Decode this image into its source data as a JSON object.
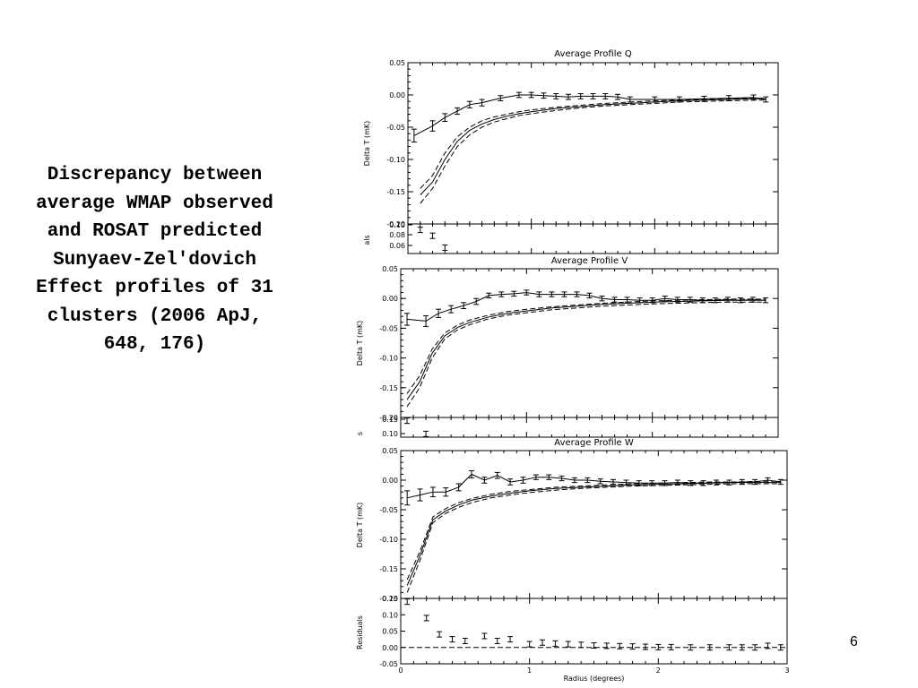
{
  "slide": {
    "caption": "Discrepancy between average WMAP observed and ROSAT predicted Sunyaev-Zel'dovich Effect profiles of 31 clusters (2006 ApJ, 648, 176)",
    "page_number": "6"
  },
  "chart_data": [
    {
      "type": "line",
      "title": "Average Profile Q",
      "ylabel": "Delta T (mK)",
      "xlabel": "",
      "xlim": [
        0,
        3
      ],
      "ylim": [
        -0.2,
        0.05
      ],
      "yticks": [
        "0.05",
        "0.00",
        "-0.05",
        "-0.10",
        "-0.15",
        "-0.20"
      ],
      "series": [
        {
          "style": "solid-errorbars",
          "x": [
            0.05,
            0.2,
            0.3,
            0.4,
            0.5,
            0.6,
            0.75,
            0.9,
            1.0,
            1.1,
            1.2,
            1.3,
            1.4,
            1.5,
            1.6,
            1.7,
            1.8,
            2.0,
            2.2,
            2.4,
            2.6,
            2.8,
            2.9
          ],
          "y": [
            -0.063,
            -0.048,
            -0.035,
            -0.025,
            -0.015,
            -0.012,
            -0.005,
            0.0,
            0.0,
            -0.001,
            -0.002,
            -0.003,
            -0.002,
            -0.002,
            -0.002,
            -0.003,
            -0.007,
            -0.007,
            -0.007,
            -0.006,
            -0.005,
            -0.004,
            -0.007
          ],
          "err": [
            0.01,
            0.008,
            0.006,
            0.005,
            0.005,
            0.005,
            0.004,
            0.004,
            0.004,
            0.004,
            0.004,
            0.004,
            0.004,
            0.004,
            0.004,
            0.004,
            0.004,
            0.004,
            0.004,
            0.004,
            0.004,
            0.004,
            0.004
          ]
        },
        {
          "style": "dashed",
          "x": [
            0.1,
            0.2,
            0.3,
            0.4,
            0.5,
            0.6,
            0.7,
            0.8,
            0.9,
            1.0,
            1.2,
            1.4,
            1.6,
            1.8,
            2.0,
            2.2,
            2.4,
            2.6,
            2.8,
            2.9
          ],
          "y": [
            -0.145,
            -0.125,
            -0.09,
            -0.065,
            -0.05,
            -0.04,
            -0.034,
            -0.03,
            -0.026,
            -0.023,
            -0.019,
            -0.016,
            -0.013,
            -0.011,
            -0.009,
            -0.008,
            -0.007,
            -0.006,
            -0.005,
            -0.005
          ]
        },
        {
          "style": "solid",
          "x": [
            0.1,
            0.2,
            0.3,
            0.4,
            0.5,
            0.6,
            0.7,
            0.8,
            0.9,
            1.0,
            1.2,
            1.4,
            1.6,
            1.8,
            2.0,
            2.2,
            2.4,
            2.6,
            2.8,
            2.9
          ],
          "y": [
            -0.155,
            -0.135,
            -0.1,
            -0.072,
            -0.055,
            -0.045,
            -0.038,
            -0.033,
            -0.029,
            -0.026,
            -0.021,
            -0.018,
            -0.015,
            -0.013,
            -0.011,
            -0.009,
            -0.008,
            -0.007,
            -0.006,
            -0.006
          ]
        },
        {
          "style": "dashed",
          "x": [
            0.1,
            0.2,
            0.3,
            0.4,
            0.5,
            0.6,
            0.7,
            0.8,
            0.9,
            1.0,
            1.2,
            1.4,
            1.6,
            1.8,
            2.0,
            2.2,
            2.4,
            2.6,
            2.8,
            2.9
          ],
          "y": [
            -0.168,
            -0.145,
            -0.11,
            -0.08,
            -0.062,
            -0.05,
            -0.042,
            -0.037,
            -0.032,
            -0.029,
            -0.024,
            -0.02,
            -0.017,
            -0.015,
            -0.013,
            -0.011,
            -0.01,
            -0.009,
            -0.008,
            -0.008
          ]
        }
      ],
      "residuals": {
        "ylabel": "als",
        "ylim": [
          0.05,
          0.1
        ],
        "yticks": [
          "0.10",
          "0.08",
          "0.06"
        ],
        "x": [
          0.1,
          0.2,
          0.3
        ],
        "y": [
          0.09,
          0.08,
          0.06
        ]
      }
    },
    {
      "type": "line",
      "title": "Average Profile V",
      "ylabel": "Delta T (mK)",
      "xlabel": "",
      "xlim": [
        0,
        3
      ],
      "ylim": [
        -0.2,
        0.05
      ],
      "yticks": [
        "0.05",
        "0.00",
        "-0.05",
        "-0.10",
        "-0.15",
        "-0.20"
      ],
      "series": [
        {
          "style": "solid-errorbars",
          "x": [
            0.05,
            0.2,
            0.3,
            0.4,
            0.5,
            0.6,
            0.7,
            0.8,
            0.9,
            1.0,
            1.1,
            1.2,
            1.3,
            1.4,
            1.5,
            1.6,
            1.7,
            1.8,
            1.9,
            2.0,
            2.1,
            2.2,
            2.3,
            2.4,
            2.5,
            2.6,
            2.7,
            2.8,
            2.9
          ],
          "y": [
            -0.035,
            -0.038,
            -0.025,
            -0.018,
            -0.012,
            -0.005,
            0.005,
            0.007,
            0.008,
            0.01,
            0.007,
            0.007,
            0.007,
            0.007,
            0.005,
            0.0,
            -0.002,
            -0.002,
            -0.003,
            -0.003,
            0.0,
            -0.002,
            -0.002,
            -0.003,
            -0.003,
            -0.002,
            -0.003,
            -0.002,
            -0.003
          ],
          "err": [
            0.01,
            0.009,
            0.007,
            0.006,
            0.005,
            0.005,
            0.004,
            0.004,
            0.004,
            0.004,
            0.004,
            0.004,
            0.004,
            0.004,
            0.004,
            0.004,
            0.004,
            0.004,
            0.004,
            0.004,
            0.004,
            0.004,
            0.004,
            0.004,
            0.004,
            0.004,
            0.004,
            0.004,
            0.004
          ]
        },
        {
          "style": "dashed",
          "x": [
            0.05,
            0.15,
            0.25,
            0.35,
            0.45,
            0.55,
            0.7,
            0.85,
            1.0,
            1.2,
            1.4,
            1.6,
            1.8,
            2.0,
            2.2,
            2.4,
            2.6,
            2.8,
            2.9
          ],
          "y": [
            -0.16,
            -0.13,
            -0.085,
            -0.058,
            -0.045,
            -0.036,
            -0.028,
            -0.022,
            -0.018,
            -0.014,
            -0.011,
            -0.008,
            -0.006,
            -0.004,
            -0.003,
            -0.002,
            -0.001,
            -0.001,
            -0.001
          ]
        },
        {
          "style": "solid",
          "x": [
            0.05,
            0.15,
            0.25,
            0.35,
            0.45,
            0.55,
            0.7,
            0.85,
            1.0,
            1.2,
            1.4,
            1.6,
            1.8,
            2.0,
            2.2,
            2.4,
            2.6,
            2.8,
            2.9
          ],
          "y": [
            -0.17,
            -0.14,
            -0.092,
            -0.063,
            -0.049,
            -0.04,
            -0.031,
            -0.025,
            -0.021,
            -0.016,
            -0.013,
            -0.01,
            -0.008,
            -0.006,
            -0.005,
            -0.004,
            -0.003,
            -0.003,
            -0.003
          ]
        },
        {
          "style": "dashed",
          "x": [
            0.05,
            0.15,
            0.25,
            0.35,
            0.45,
            0.55,
            0.7,
            0.85,
            1.0,
            1.2,
            1.4,
            1.6,
            1.8,
            2.0,
            2.2,
            2.4,
            2.6,
            2.8,
            2.9
          ],
          "y": [
            -0.182,
            -0.15,
            -0.1,
            -0.068,
            -0.053,
            -0.044,
            -0.034,
            -0.028,
            -0.024,
            -0.019,
            -0.016,
            -0.013,
            -0.011,
            -0.009,
            -0.008,
            -0.007,
            -0.006,
            -0.006,
            -0.006
          ]
        }
      ],
      "residuals": {
        "ylabel": "s",
        "ylim": [
          0.09,
          0.15
        ],
        "yticks": [
          "0.15",
          "0.10"
        ],
        "x": [
          0.05,
          0.2
        ],
        "y": [
          0.14,
          0.1
        ]
      }
    },
    {
      "type": "line",
      "title": "Average Profile W",
      "ylabel": "Delta T (mK)",
      "xlabel": "Radius (degrees)",
      "xlim": [
        0,
        3
      ],
      "xticks": [
        "0",
        "1",
        "2",
        "3"
      ],
      "ylim": [
        -0.2,
        0.05
      ],
      "yticks": [
        "0.05",
        "0.00",
        "-0.05",
        "-0.10",
        "-0.15",
        "-0.20"
      ],
      "series": [
        {
          "style": "solid-errorbars",
          "x": [
            0.05,
            0.15,
            0.25,
            0.35,
            0.45,
            0.55,
            0.65,
            0.75,
            0.85,
            0.95,
            1.05,
            1.15,
            1.25,
            1.35,
            1.45,
            1.55,
            1.65,
            1.75,
            1.85,
            1.95,
            2.05,
            2.15,
            2.25,
            2.35,
            2.45,
            2.55,
            2.65,
            2.75,
            2.85,
            2.95
          ],
          "y": [
            -0.03,
            -0.025,
            -0.02,
            -0.02,
            -0.012,
            0.01,
            0.0,
            0.008,
            -0.003,
            0.0,
            0.005,
            0.005,
            0.003,
            0.0,
            0.0,
            -0.002,
            -0.003,
            -0.004,
            -0.005,
            -0.005,
            -0.005,
            -0.004,
            -0.005,
            -0.005,
            -0.004,
            -0.004,
            -0.003,
            -0.003,
            0.0,
            -0.003
          ],
          "err": [
            0.012,
            0.01,
            0.008,
            0.007,
            0.006,
            0.006,
            0.005,
            0.005,
            0.005,
            0.005,
            0.004,
            0.004,
            0.004,
            0.004,
            0.004,
            0.004,
            0.004,
            0.004,
            0.004,
            0.004,
            0.004,
            0.004,
            0.004,
            0.004,
            0.004,
            0.004,
            0.004,
            0.004,
            0.004,
            0.004
          ]
        },
        {
          "style": "dashed",
          "x": [
            0.05,
            0.15,
            0.25,
            0.35,
            0.45,
            0.55,
            0.7,
            0.85,
            1.0,
            1.2,
            1.4,
            1.6,
            1.8,
            2.0,
            2.2,
            2.4,
            2.6,
            2.8,
            2.95
          ],
          "y": [
            -0.168,
            -0.12,
            -0.062,
            -0.048,
            -0.038,
            -0.031,
            -0.024,
            -0.019,
            -0.016,
            -0.012,
            -0.01,
            -0.008,
            -0.006,
            -0.005,
            -0.004,
            -0.003,
            -0.003,
            -0.002,
            -0.002
          ]
        },
        {
          "style": "solid",
          "x": [
            0.05,
            0.15,
            0.25,
            0.35,
            0.45,
            0.55,
            0.7,
            0.85,
            1.0,
            1.2,
            1.4,
            1.6,
            1.8,
            2.0,
            2.2,
            2.4,
            2.6,
            2.8,
            2.95
          ],
          "y": [
            -0.178,
            -0.127,
            -0.067,
            -0.052,
            -0.042,
            -0.034,
            -0.027,
            -0.022,
            -0.018,
            -0.014,
            -0.012,
            -0.01,
            -0.008,
            -0.007,
            -0.006,
            -0.005,
            -0.004,
            -0.004,
            -0.004
          ]
        },
        {
          "style": "dashed",
          "x": [
            0.05,
            0.15,
            0.25,
            0.35,
            0.45,
            0.55,
            0.7,
            0.85,
            1.0,
            1.2,
            1.4,
            1.6,
            1.8,
            2.0,
            2.2,
            2.4,
            2.6,
            2.8,
            2.95
          ],
          "y": [
            -0.19,
            -0.135,
            -0.072,
            -0.056,
            -0.046,
            -0.038,
            -0.03,
            -0.025,
            -0.021,
            -0.017,
            -0.014,
            -0.012,
            -0.01,
            -0.009,
            -0.008,
            -0.007,
            -0.006,
            -0.006,
            -0.006
          ]
        }
      ],
      "residuals": {
        "ylabel": "Residuals",
        "ylim": [
          -0.05,
          0.15
        ],
        "yticks": [
          "0.15",
          "0.10",
          "0.05",
          "0.00",
          "-0.05"
        ],
        "zero_line": true,
        "x": [
          0.05,
          0.2,
          0.3,
          0.4,
          0.5,
          0.65,
          0.75,
          0.85,
          1.0,
          1.1,
          1.2,
          1.3,
          1.4,
          1.5,
          1.6,
          1.7,
          1.8,
          1.9,
          2.0,
          2.1,
          2.25,
          2.4,
          2.55,
          2.65,
          2.75,
          2.85,
          2.95
        ],
        "y": [
          0.14,
          0.09,
          0.04,
          0.025,
          0.02,
          0.035,
          0.02,
          0.025,
          0.01,
          0.015,
          0.012,
          0.01,
          0.008,
          0.006,
          0.005,
          0.004,
          0.003,
          0.002,
          0.001,
          0.001,
          0.0,
          0.0,
          0.0,
          0.0,
          0.0,
          0.005,
          0.0
        ]
      }
    }
  ]
}
